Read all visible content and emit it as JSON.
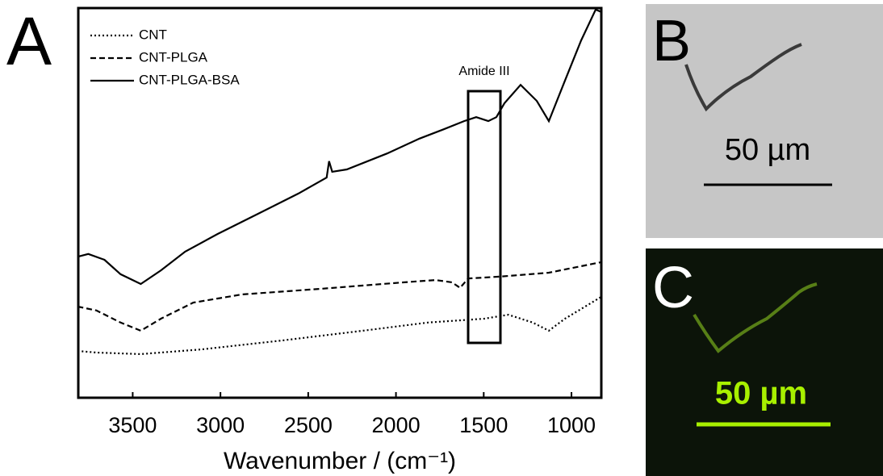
{
  "chart_data": {
    "type": "line",
    "panel_label": "A",
    "xlabel": "Wavenumber / (cm⁻¹)",
    "xlim": [
      3810,
      830
    ],
    "ylim": [
      0,
      100
    ],
    "xticks": [
      3500,
      3000,
      2500,
      2000,
      1500,
      1000
    ],
    "annotation": "Amide III",
    "legend": "upper left",
    "series": [
      {
        "name": "CNT",
        "color": "#000000",
        "dash": "dotted",
        "x": [
          3813,
          3707,
          3454,
          3109,
          2648,
          2188,
          1819,
          1497,
          1359,
          1221,
          1129,
          1037,
          830
        ],
        "values": [
          12.0,
          11.6,
          11.2,
          12.4,
          14.7,
          17.2,
          19.3,
          20.3,
          21.3,
          19.3,
          17.2,
          20.3,
          25.9
        ]
      },
      {
        "name": "CNT-PLGA",
        "color": "#000000",
        "dash": "dashed",
        "x": [
          3813,
          3707,
          3569,
          3454,
          3339,
          3155,
          2879,
          2418,
          1958,
          1773,
          1681,
          1635,
          1589,
          1405,
          1129,
          830
        ],
        "values": [
          23.4,
          22.4,
          19.3,
          17.2,
          20.3,
          24.4,
          26.5,
          28.0,
          29.6,
          30.2,
          29.6,
          28.2,
          30.6,
          31.1,
          32.1,
          34.8
        ]
      },
      {
        "name": "CNT-PLGA-BSA",
        "color": "#000000",
        "dash": "solid",
        "x": [
          3813,
          3753,
          3661,
          3569,
          3454,
          3339,
          3201,
          3017,
          2786,
          2556,
          2395,
          2381,
          2363,
          2280,
          2050,
          1866,
          1727,
          1612,
          1543,
          1474,
          1428,
          1382,
          1290,
          1198,
          1129,
          1037,
          945,
          862,
          830
        ],
        "values": [
          36.2,
          36.9,
          35.4,
          31.7,
          29.2,
          32.7,
          37.5,
          42.0,
          47.2,
          52.4,
          56.5,
          60.7,
          58.0,
          58.6,
          62.7,
          66.5,
          68.9,
          71.0,
          72.0,
          71.0,
          72.0,
          75.6,
          80.3,
          76.2,
          71.0,
          81.4,
          91.7,
          99.6,
          99.0
        ]
      }
    ]
  },
  "images": [
    {
      "label": "B",
      "scale_bar": "50 µm"
    },
    {
      "label": "C",
      "scale_bar": "50 µm"
    }
  ]
}
